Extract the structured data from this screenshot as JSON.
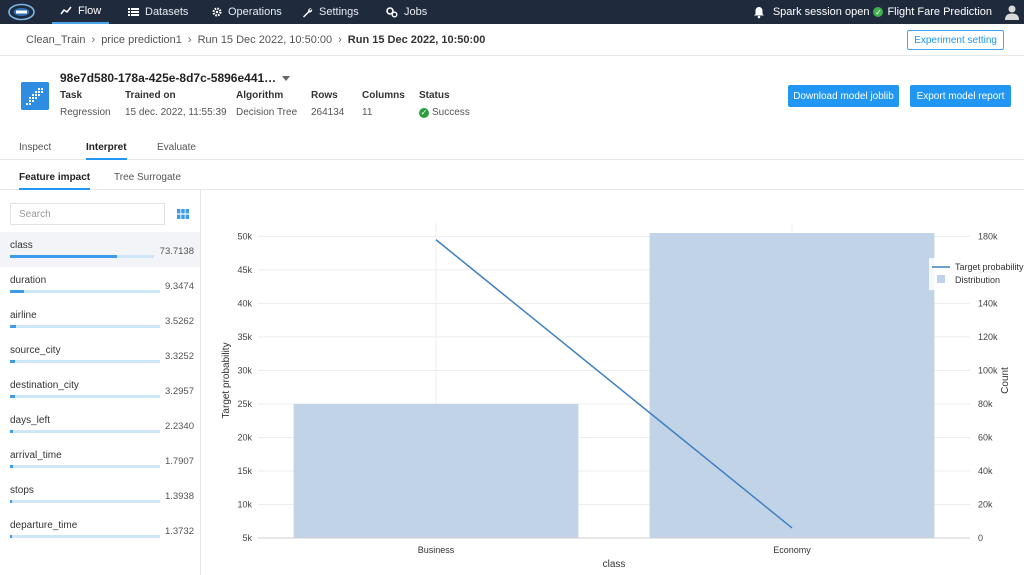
{
  "nav": {
    "items": [
      {
        "label": "Flow",
        "icon": "trend-icon"
      },
      {
        "label": "Datasets",
        "icon": "list-icon"
      },
      {
        "label": "Operations",
        "icon": "gear-icon"
      },
      {
        "label": "Settings",
        "icon": "wrench-icon"
      },
      {
        "label": "Jobs",
        "icon": "jobs-icon"
      }
    ],
    "spark_status": "Spark session open",
    "project": "Flight Fare Prediction",
    "accent": "#4aa3e8",
    "bg": "#1f2a3c"
  },
  "breadcrumb": {
    "items": [
      "Clean_Train",
      "price prediction1",
      "Run 15 Dec 2022, 10:50:00"
    ],
    "current": "Run 15 Dec 2022, 10:50:00",
    "experiment_button": "Experiment setting"
  },
  "model": {
    "title": "98e7d580-178a-425e-8d7c-5896e441…",
    "meta": [
      {
        "key": "Task",
        "value": "Regression"
      },
      {
        "key": "Trained on",
        "value": "15 dec. 2022, 11:55:39"
      },
      {
        "key": "Algorithm",
        "value": "Decision Tree"
      },
      {
        "key": "Rows",
        "value": "264134"
      },
      {
        "key": "Columns",
        "value": "11"
      },
      {
        "key": "Status",
        "value": "Success"
      }
    ],
    "download_button": "Download model joblib",
    "export_button": "Export model report"
  },
  "tabs": [
    "Inspect",
    "Interpret",
    "Evaluate"
  ],
  "active_tab": "Interpret",
  "subtabs": [
    "Feature impact",
    "Tree Surrogate"
  ],
  "active_subtab": "Feature impact",
  "search": {
    "placeholder": "Search"
  },
  "features": [
    {
      "name": "class",
      "value": "73.7138",
      "fraction": 0.74
    },
    {
      "name": "duration",
      "value": "9.3474",
      "fraction": 0.09
    },
    {
      "name": "airline",
      "value": "3.5262",
      "fraction": 0.04
    },
    {
      "name": "source_city",
      "value": "3.3252",
      "fraction": 0.03
    },
    {
      "name": "destination_city",
      "value": "3.2957",
      "fraction": 0.03
    },
    {
      "name": "days_left",
      "value": "2.2340",
      "fraction": 0.02
    },
    {
      "name": "arrival_time",
      "value": "1.7907",
      "fraction": 0.02
    },
    {
      "name": "stops",
      "value": "1.3938",
      "fraction": 0.01
    },
    {
      "name": "departure_time",
      "value": "1.3732",
      "fraction": 0.01
    }
  ],
  "chart_data": {
    "type": "bar",
    "categories": [
      "Business",
      "Economy"
    ],
    "xlabel": "class",
    "ylabel": "Target probability",
    "y2label": "Count",
    "ylim": [
      5000,
      52000
    ],
    "y2lim": [
      0,
      188000
    ],
    "yticks": [
      "5k",
      "10k",
      "15k",
      "20k",
      "25k",
      "30k",
      "35k",
      "40k",
      "45k",
      "50k"
    ],
    "yticks_values": [
      5000,
      10000,
      15000,
      20000,
      25000,
      30000,
      35000,
      40000,
      45000,
      50000
    ],
    "y2ticks": [
      "0",
      "20k",
      "40k",
      "60k",
      "80k",
      "100k",
      "120k",
      "140k",
      "160k",
      "180k"
    ],
    "y2ticks_values": [
      0,
      20000,
      40000,
      60000,
      80000,
      100000,
      120000,
      140000,
      160000,
      180000
    ],
    "series": [
      {
        "name": "Target probability",
        "kind": "line",
        "values": [
          49500,
          6500
        ],
        "color": "#3d7fc1"
      },
      {
        "name": "Distribution",
        "kind": "bar",
        "values": [
          80000,
          182000
        ],
        "color": "#c1d3e6"
      }
    ],
    "legend": "top-right",
    "grid": true
  }
}
